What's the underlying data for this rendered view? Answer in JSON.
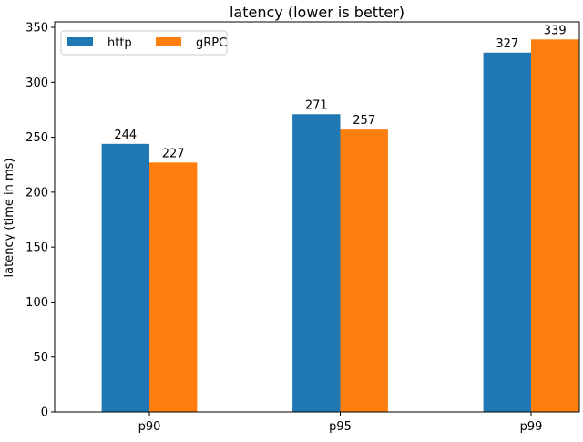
{
  "chart_data": {
    "type": "bar",
    "title": "latency (lower is better)",
    "xlabel": "",
    "ylabel": "latency (time in ms)",
    "categories": [
      "p90",
      "p95",
      "p99"
    ],
    "series": [
      {
        "name": "http",
        "color": "#1f77b4",
        "values": [
          244,
          271,
          327
        ]
      },
      {
        "name": "gRPC",
        "color": "#ff7f0e",
        "values": [
          227,
          257,
          339
        ]
      }
    ],
    "ylim": [
      0,
      355
    ],
    "yticks": [
      0,
      50,
      100,
      150,
      200,
      250,
      300,
      350
    ],
    "grid": false,
    "legend": {
      "position": "top-left",
      "columns": 2
    },
    "data_labels": true
  }
}
